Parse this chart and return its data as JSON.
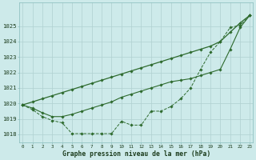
{
  "title": "Graphe pression niveau de la mer (hPa)",
  "x_ticks": [
    "0",
    "1",
    "2",
    "3",
    "4",
    "5",
    "6",
    "7",
    "8",
    "9",
    "10",
    "11",
    "12",
    "13",
    "14",
    "15",
    "16",
    "17",
    "18",
    "19",
    "20",
    "21",
    "22",
    "23"
  ],
  "line_color": "#2d6a2d",
  "bg_color": "#cdeaea",
  "grid_color": "#b0d0d0",
  "ylim": [
    1017.5,
    1026.5
  ],
  "xlim": [
    -0.3,
    23.3
  ],
  "yticks": [
    1018,
    1019,
    1020,
    1021,
    1022,
    1023,
    1024,
    1025
  ],
  "series_detail": [
    1019.9,
    1019.6,
    1019.15,
    1018.9,
    1018.75,
    1018.05,
    1018.05,
    1018.05,
    1018.05,
    1018.05,
    1018.85,
    1018.6,
    1018.6,
    1019.5,
    1019.5,
    1019.8,
    1020.3,
    1021.0,
    1022.2,
    1023.3,
    1024.0,
    1024.9,
    1025.05,
    1025.7
  ],
  "series_mid": [
    1019.9,
    1019.7,
    1019.4,
    1019.15,
    1019.15,
    1019.3,
    1019.5,
    1019.7,
    1019.9,
    1020.1,
    1020.4,
    1020.6,
    1020.8,
    1021.0,
    1021.2,
    1021.4,
    1021.5,
    1021.6,
    1021.8,
    1022.0,
    1022.2,
    1023.5,
    1024.9,
    1025.7
  ],
  "series_top": [
    1019.9,
    1020.1,
    1020.3,
    1020.5,
    1020.7,
    1020.9,
    1021.1,
    1021.3,
    1021.5,
    1021.7,
    1021.9,
    1022.1,
    1022.3,
    1022.5,
    1022.7,
    1022.9,
    1023.1,
    1023.3,
    1023.5,
    1023.7,
    1024.0,
    1024.6,
    1025.2,
    1025.7
  ]
}
